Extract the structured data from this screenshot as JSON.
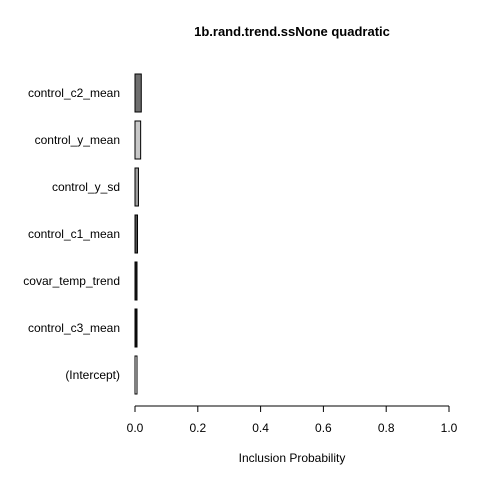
{
  "chart_data": {
    "type": "bar",
    "orientation": "horizontal",
    "title": "1b.rand.trend.ssNone quadratic",
    "xlabel": "Inclusion Probability",
    "ylabel": "",
    "xlim": [
      0,
      1
    ],
    "xticks": [
      "0.0",
      "0.2",
      "0.4",
      "0.6",
      "0.8",
      "1.0"
    ],
    "grid": false,
    "categories": [
      "control_c2_mean",
      "control_y_mean",
      "control_y_sd",
      "control_c1_mean",
      "covar_temp_trend",
      "control_c3_mean",
      "(Intercept)"
    ],
    "values": [
      0.02,
      0.018,
      0.011,
      0.008,
      0.004,
      0.004,
      0.0
    ],
    "bar_colors": [
      "#6e6e6e",
      "#c8c8c8",
      "#a0a0a0",
      "#505050",
      "#1e1e1e",
      "#141414",
      "#ffffff"
    ]
  }
}
